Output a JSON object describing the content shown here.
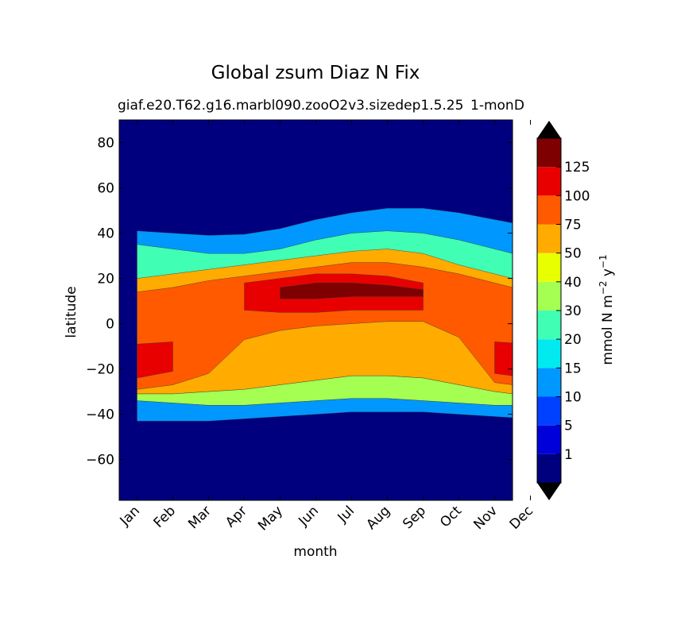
{
  "chart_data": {
    "type": "heatmap",
    "title": "Global zsum Diaz N Fix",
    "subtitle_left": "giaf.e20.T62.g16.marbl090.zooO2v3.sizedep1.5.25",
    "subtitle_right": "1-mon",
    "subtitle_right2": "D",
    "xlabel": "month",
    "ylabel": "latitude",
    "x_categories": [
      "Jan",
      "Feb",
      "Mar",
      "Apr",
      "May",
      "Jun",
      "Jul",
      "Aug",
      "Sep",
      "Oct",
      "Nov",
      "Dec"
    ],
    "xlim": [
      0.5,
      11.5
    ],
    "ylim": [
      -78,
      90
    ],
    "y_ticks": [
      80,
      60,
      40,
      20,
      0,
      -20,
      -40,
      -60
    ],
    "y_tick_labels": [
      "80",
      "60",
      "40",
      "20",
      "0",
      "−20",
      "−40",
      "−60"
    ],
    "contour_levels": [
      1,
      5,
      10,
      15,
      20,
      30,
      40,
      50,
      75,
      100,
      125
    ],
    "level_colors": [
      "#00007f",
      "#0000d8",
      "#0040ff",
      "#0098ff",
      "#00eaf0",
      "#40ffb4",
      "#a4ff52",
      "#e8ff00",
      "#ffab00",
      "#ff5a00",
      "#e80000",
      "#7f0000"
    ],
    "under_color": "#000000",
    "over_color": "#000000",
    "colorbar": {
      "label": "mmol N m",
      "label_sup1": "−2",
      "label_mid": " y",
      "label_sup2": "−1",
      "ticks": [
        "1",
        "5",
        "10",
        "15",
        "20",
        "30",
        "40",
        "50",
        "75",
        "100",
        "125"
      ]
    },
    "series": [
      {
        "name": "upper edge of 1 contour (lat)",
        "values": [
          41,
          40,
          39,
          39.5,
          42,
          46,
          49,
          51,
          51,
          49,
          46,
          43
        ]
      },
      {
        "name": "upper edge of 20 contour (lat)",
        "values": [
          35,
          33,
          31,
          31,
          33,
          37,
          40,
          41,
          40,
          37,
          33,
          29
        ]
      },
      {
        "name": "upper edge of 50 contour (lat)",
        "values": [
          20,
          22,
          24,
          26,
          28,
          30,
          32,
          33,
          31,
          26,
          22,
          18
        ]
      },
      {
        "name": "upper edge of 75 contour (lat)",
        "values": [
          14,
          16,
          19,
          21,
          23,
          25,
          27,
          27,
          25,
          22,
          18,
          14
        ]
      },
      {
        "name": "upper edge of 100 contour (lat)",
        "values": [
          -9,
          -8,
          null,
          18,
          20,
          22,
          22,
          21,
          18,
          null,
          -8,
          -9
        ]
      },
      {
        "name": "upper edge of 125 contour (lat)",
        "values": [
          null,
          null,
          null,
          null,
          16,
          18,
          18,
          17,
          15,
          null,
          null,
          null
        ]
      },
      {
        "name": "lower edge of 125 contour (lat)",
        "values": [
          null,
          null,
          null,
          null,
          11,
          11,
          12,
          12,
          12,
          null,
          null,
          null
        ]
      },
      {
        "name": "lower edge of 100 contour (lat)",
        "values": [
          -24,
          -21,
          null,
          6,
          5,
          5,
          6,
          6,
          6,
          null,
          -22,
          -24
        ]
      },
      {
        "name": "lower edge of 75 contour (lat)",
        "values": [
          -29,
          -27,
          -22,
          -7,
          -3,
          -1,
          0,
          1,
          1,
          -6,
          -26,
          -28
        ]
      },
      {
        "name": "lower edge of 50 contour (lat)",
        "values": [
          -31,
          -31,
          -30,
          -29,
          -27,
          -25,
          -23,
          -23,
          -24,
          -27,
          -30,
          -32
        ]
      },
      {
        "name": "lower edge of 20 contour (lat)",
        "values": [
          -34,
          -35,
          -36,
          -36,
          -35,
          -34,
          -33,
          -33,
          -34,
          -35,
          -36,
          -36
        ]
      },
      {
        "name": "lower edge of 1 contour (lat)",
        "values": [
          -43,
          -43,
          -43,
          -42,
          -41,
          -40,
          -39,
          -39,
          -39,
          -40,
          -41,
          -42
        ]
      }
    ]
  }
}
